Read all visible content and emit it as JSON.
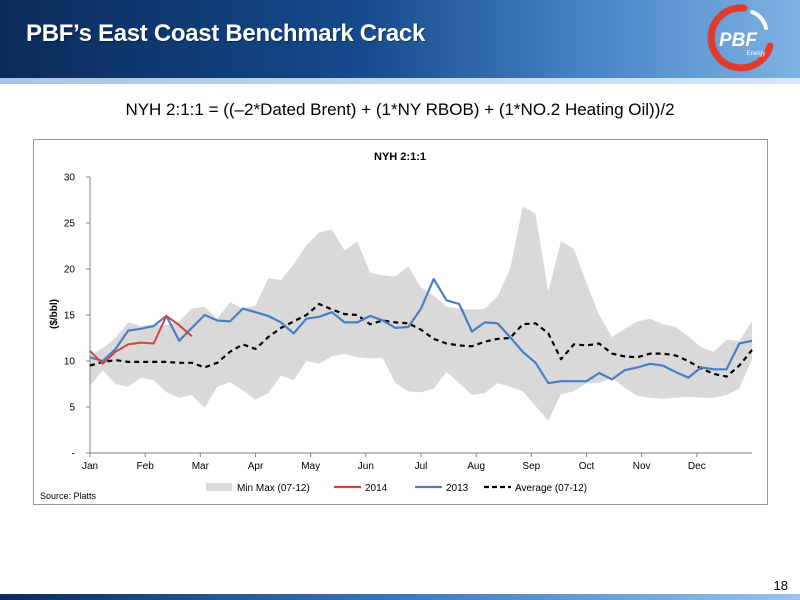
{
  "header": {
    "title": "PBF’s East Coast Benchmark Crack",
    "logo_text": "PBF",
    "logo_sub": "Energy"
  },
  "subtitle": "NYH 2:1:1 = ((–2*Dated Brent) + (1*NY RBOB) + (1*NO.2 Heating Oil))/2",
  "source": "Source: Platts",
  "page_number": "18",
  "colors": {
    "range": "#d9d9d9",
    "s2014": "#d9403f",
    "s2013": "#4a7fc1",
    "average": "#000000"
  },
  "chart_data": {
    "type": "line",
    "title": "NYH 2:1:1",
    "ylabel": "($/bbl)",
    "xlabel": "",
    "ylim": [
      0,
      30
    ],
    "yticks": [
      0,
      5,
      10,
      15,
      20,
      25,
      30
    ],
    "ytick_labels": [
      "-",
      "5",
      "10",
      "15",
      "20",
      "25",
      "30"
    ],
    "month_labels": [
      "Jan",
      "Feb",
      "Mar",
      "Apr",
      "May",
      "Jun",
      "Jul",
      "Aug",
      "Sep",
      "Oct",
      "Nov",
      "Dec"
    ],
    "x_unit": "week",
    "x_range": [
      1,
      53
    ],
    "legend_position": "bottom",
    "range_band": {
      "name": "Min Max (07-12)",
      "max": [
        [
          1,
          10.6
        ],
        [
          2,
          11.4
        ],
        [
          3,
          12.5
        ],
        [
          4,
          14.2
        ],
        [
          5,
          13.8
        ],
        [
          6,
          14.0
        ],
        [
          7,
          13.9
        ],
        [
          8,
          14.3
        ],
        [
          9,
          15.7
        ],
        [
          10,
          15.9
        ],
        [
          11,
          14.6
        ],
        [
          12,
          16.4
        ],
        [
          13,
          15.7
        ],
        [
          14,
          16.0
        ],
        [
          15,
          19.0
        ],
        [
          16,
          18.8
        ],
        [
          17,
          20.5
        ],
        [
          18,
          22.6
        ],
        [
          19,
          24.0
        ],
        [
          20,
          24.3
        ],
        [
          21,
          22.0
        ],
        [
          22,
          23.0
        ],
        [
          23,
          19.6
        ],
        [
          24,
          19.3
        ],
        [
          25,
          19.2
        ],
        [
          26,
          20.3
        ],
        [
          27,
          18.0
        ],
        [
          28,
          17.1
        ],
        [
          29,
          15.9
        ],
        [
          30,
          15.7
        ],
        [
          31,
          15.6
        ],
        [
          32,
          15.7
        ],
        [
          33,
          17.0
        ],
        [
          34,
          20.0
        ],
        [
          35,
          26.8
        ],
        [
          36,
          26.0
        ],
        [
          37,
          17.5
        ],
        [
          38,
          23.0
        ],
        [
          39,
          22.2
        ],
        [
          40,
          18.5
        ],
        [
          41,
          15.0
        ],
        [
          42,
          12.6
        ],
        [
          43,
          13.5
        ],
        [
          44,
          14.3
        ],
        [
          45,
          14.6
        ],
        [
          46,
          14.0
        ],
        [
          47,
          13.7
        ],
        [
          48,
          12.7
        ],
        [
          49,
          11.5
        ],
        [
          50,
          11.0
        ],
        [
          51,
          12.3
        ],
        [
          52,
          12.2
        ],
        [
          53,
          14.3
        ]
      ],
      "min": [
        [
          1,
          7.3
        ],
        [
          2,
          9.0
        ],
        [
          3,
          7.5
        ],
        [
          4,
          7.2
        ],
        [
          5,
          8.2
        ],
        [
          6,
          7.9
        ],
        [
          7,
          6.6
        ],
        [
          8,
          6.0
        ],
        [
          9,
          6.3
        ],
        [
          10,
          4.9
        ],
        [
          11,
          7.2
        ],
        [
          12,
          7.7
        ],
        [
          13,
          6.8
        ],
        [
          14,
          5.8
        ],
        [
          15,
          6.5
        ],
        [
          16,
          8.4
        ],
        [
          17,
          7.9
        ],
        [
          18,
          10.0
        ],
        [
          19,
          9.7
        ],
        [
          20,
          10.5
        ],
        [
          21,
          10.8
        ],
        [
          22,
          10.4
        ],
        [
          23,
          10.3
        ],
        [
          24,
          10.3
        ],
        [
          25,
          7.6
        ],
        [
          26,
          6.7
        ],
        [
          27,
          6.6
        ],
        [
          28,
          7.0
        ],
        [
          29,
          8.8
        ],
        [
          30,
          7.6
        ],
        [
          31,
          6.3
        ],
        [
          32,
          6.5
        ],
        [
          33,
          7.6
        ],
        [
          34,
          7.2
        ],
        [
          35,
          6.7
        ],
        [
          36,
          5.1
        ],
        [
          37,
          3.5
        ],
        [
          38,
          6.4
        ],
        [
          39,
          6.7
        ],
        [
          40,
          7.6
        ],
        [
          41,
          7.6
        ],
        [
          42,
          8.2
        ],
        [
          43,
          7.1
        ],
        [
          44,
          6.2
        ],
        [
          45,
          6.0
        ],
        [
          46,
          5.9
        ],
        [
          47,
          6.0
        ],
        [
          48,
          6.1
        ],
        [
          49,
          6.0
        ],
        [
          50,
          6.0
        ],
        [
          51,
          6.3
        ],
        [
          52,
          7.0
        ],
        [
          53,
          10.2
        ]
      ]
    },
    "series": [
      {
        "name": "2014",
        "points": [
          [
            1,
            11.1
          ],
          [
            2,
            9.7
          ],
          [
            3,
            11.0
          ],
          [
            4,
            11.8
          ],
          [
            5,
            12.0
          ],
          [
            6,
            11.9
          ],
          [
            7,
            14.9
          ],
          [
            8,
            13.9
          ],
          [
            9,
            12.7
          ]
        ]
      },
      {
        "name": "2013",
        "points": [
          [
            1,
            10.4
          ],
          [
            2,
            10.0
          ],
          [
            3,
            11.3
          ],
          [
            4,
            13.3
          ],
          [
            5,
            13.5
          ],
          [
            6,
            13.8
          ],
          [
            7,
            14.9
          ],
          [
            8,
            12.2
          ],
          [
            9,
            13.6
          ],
          [
            10,
            15.0
          ],
          [
            11,
            14.4
          ],
          [
            12,
            14.3
          ],
          [
            13,
            15.7
          ],
          [
            14,
            15.3
          ],
          [
            15,
            14.9
          ],
          [
            16,
            14.2
          ],
          [
            17,
            13.0
          ],
          [
            18,
            14.6
          ],
          [
            19,
            14.8
          ],
          [
            20,
            15.3
          ],
          [
            21,
            14.2
          ],
          [
            22,
            14.2
          ],
          [
            23,
            14.9
          ],
          [
            24,
            14.4
          ],
          [
            25,
            13.6
          ],
          [
            26,
            13.7
          ],
          [
            27,
            15.7
          ],
          [
            28,
            18.9
          ],
          [
            29,
            16.6
          ],
          [
            30,
            16.2
          ],
          [
            31,
            13.2
          ],
          [
            32,
            14.2
          ],
          [
            33,
            14.1
          ],
          [
            34,
            12.6
          ],
          [
            35,
            11.0
          ],
          [
            36,
            9.8
          ],
          [
            37,
            7.6
          ],
          [
            38,
            7.8
          ],
          [
            39,
            7.8
          ],
          [
            40,
            7.8
          ],
          [
            41,
            8.7
          ],
          [
            42,
            8.0
          ],
          [
            43,
            9.0
          ],
          [
            44,
            9.3
          ],
          [
            45,
            9.7
          ],
          [
            46,
            9.5
          ],
          [
            47,
            8.8
          ],
          [
            48,
            8.2
          ],
          [
            49,
            9.3
          ],
          [
            50,
            9.1
          ],
          [
            51,
            9.1
          ],
          [
            52,
            11.9
          ],
          [
            53,
            12.2
          ]
        ]
      },
      {
        "name": "Average (07-12)",
        "points": [
          [
            1,
            9.5
          ],
          [
            2,
            9.9
          ],
          [
            3,
            10.1
          ],
          [
            4,
            9.9
          ],
          [
            5,
            9.9
          ],
          [
            6,
            9.9
          ],
          [
            7,
            9.9
          ],
          [
            8,
            9.8
          ],
          [
            9,
            9.8
          ],
          [
            10,
            9.3
          ],
          [
            11,
            9.8
          ],
          [
            12,
            11.0
          ],
          [
            13,
            11.8
          ],
          [
            14,
            11.3
          ],
          [
            15,
            12.6
          ],
          [
            16,
            13.6
          ],
          [
            17,
            14.3
          ],
          [
            18,
            15.0
          ],
          [
            19,
            16.2
          ],
          [
            20,
            15.6
          ],
          [
            21,
            15.1
          ],
          [
            22,
            15.0
          ],
          [
            23,
            14.0
          ],
          [
            24,
            14.4
          ],
          [
            25,
            14.2
          ],
          [
            26,
            14.1
          ],
          [
            27,
            13.4
          ],
          [
            28,
            12.4
          ],
          [
            29,
            11.9
          ],
          [
            30,
            11.7
          ],
          [
            31,
            11.6
          ],
          [
            32,
            12.1
          ],
          [
            33,
            12.4
          ],
          [
            34,
            12.5
          ],
          [
            35,
            14.0
          ],
          [
            36,
            14.1
          ],
          [
            37,
            13.0
          ],
          [
            38,
            10.2
          ],
          [
            39,
            11.8
          ],
          [
            40,
            11.7
          ],
          [
            41,
            11.9
          ],
          [
            42,
            10.8
          ],
          [
            43,
            10.5
          ],
          [
            44,
            10.4
          ],
          [
            45,
            10.8
          ],
          [
            46,
            10.8
          ],
          [
            47,
            10.6
          ],
          [
            48,
            10.0
          ],
          [
            49,
            9.2
          ],
          [
            50,
            8.6
          ],
          [
            51,
            8.3
          ],
          [
            52,
            9.5
          ],
          [
            53,
            11.2
          ]
        ]
      }
    ]
  }
}
